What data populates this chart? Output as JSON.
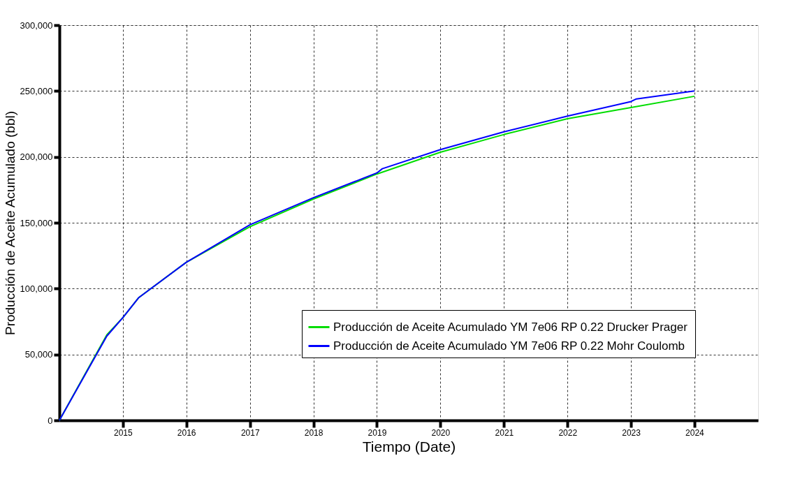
{
  "chart_data": {
    "type": "line",
    "xlabel": "Tiempo (Date)",
    "ylabel": "Producción de Aceite Acumulado (bbl)",
    "xlim": [
      "2014-01-01",
      "2025-01-01"
    ],
    "xticks": [
      "2015",
      "2016",
      "2017",
      "2018",
      "2019",
      "2020",
      "2021",
      "2022",
      "2023",
      "2024"
    ],
    "ylim": [
      0,
      300000
    ],
    "yticks": [
      {
        "value": 0,
        "label": "0"
      },
      {
        "value": 50000,
        "label": "50,000"
      },
      {
        "value": 100000,
        "label": "100,000"
      },
      {
        "value": 150000,
        "label": "150,000"
      },
      {
        "value": 200000,
        "label": "200,000"
      },
      {
        "value": 250000,
        "label": "250,000"
      },
      {
        "value": 300000,
        "label": "300,000"
      }
    ],
    "grid": true,
    "legend": "bottom right",
    "line_style": "solid",
    "series": [
      {
        "name": "Producción de Aceite Acumulado YM 7e06 RP 0.22 Drucker Prager",
        "color": "#00dd00",
        "x": [
          "2014-01-01",
          "2014-10-01",
          "2015-01-01",
          "2015-04-01",
          "2016-01-01",
          "2017-01-01",
          "2018-01-01",
          "2019-01-01",
          "2020-01-01",
          "2021-01-01",
          "2022-01-01",
          "2023-01-01",
          "2024-01-01"
        ],
        "values": [
          0,
          65000,
          78000,
          93000,
          120000,
          147000,
          168000,
          187000,
          203500,
          217000,
          229000,
          237500,
          246000
        ]
      },
      {
        "name": "Producción de Aceite Acumulado YM 7e06 RP 0.22 Mohr Coulomb",
        "color": "#0000ff",
        "x": [
          "2014-01-01",
          "2014-10-01",
          "2015-01-01",
          "2015-04-01",
          "2016-01-01",
          "2017-01-01",
          "2018-01-01",
          "2019-01-01",
          "2019-02-01",
          "2020-01-01",
          "2021-01-01",
          "2022-01-01",
          "2023-01-01",
          "2023-02-01",
          "2024-01-01"
        ],
        "values": [
          0,
          64000,
          78000,
          93000,
          120000,
          148500,
          169000,
          187800,
          191000,
          205500,
          219000,
          231000,
          242000,
          244000,
          250000
        ]
      }
    ]
  }
}
